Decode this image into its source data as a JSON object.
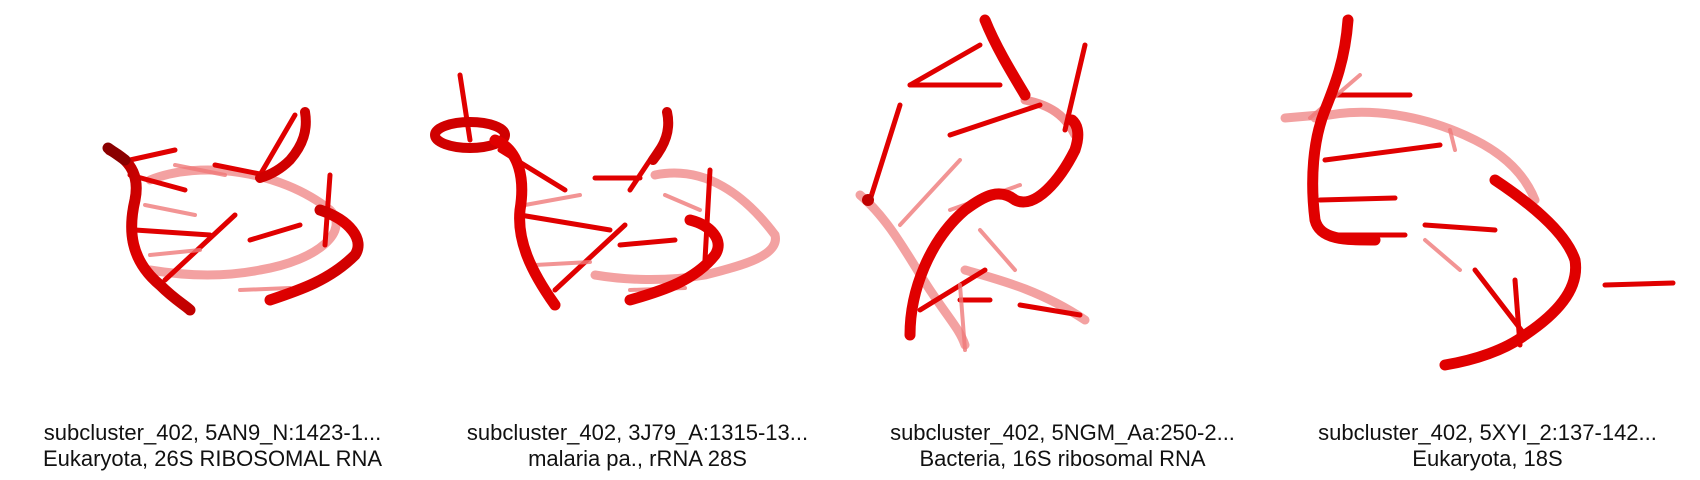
{
  "colors": {
    "backbone": "#e00000",
    "backbone_dark": "#8a0000",
    "backbone_light": "#f07a7a",
    "caption_text": "#111111",
    "background": "#ffffff"
  },
  "panels": [
    {
      "line1": "subcluster_402, 5AN9_N:1423-1...",
      "line2": "Eukaryota, 26S RIBOSOMAL RNA"
    },
    {
      "line1": "subcluster_402, 3J79_A:1315-13...",
      "line2": "malaria pa., rRNA 28S"
    },
    {
      "line1": "subcluster_402, 5NGM_Aa:250-2...",
      "line2": "Bacteria, 16S ribosomal RNA"
    },
    {
      "line1": "subcluster_402, 5XYI_2:137-142...",
      "line2": "Eukaryota, 18S"
    }
  ]
}
